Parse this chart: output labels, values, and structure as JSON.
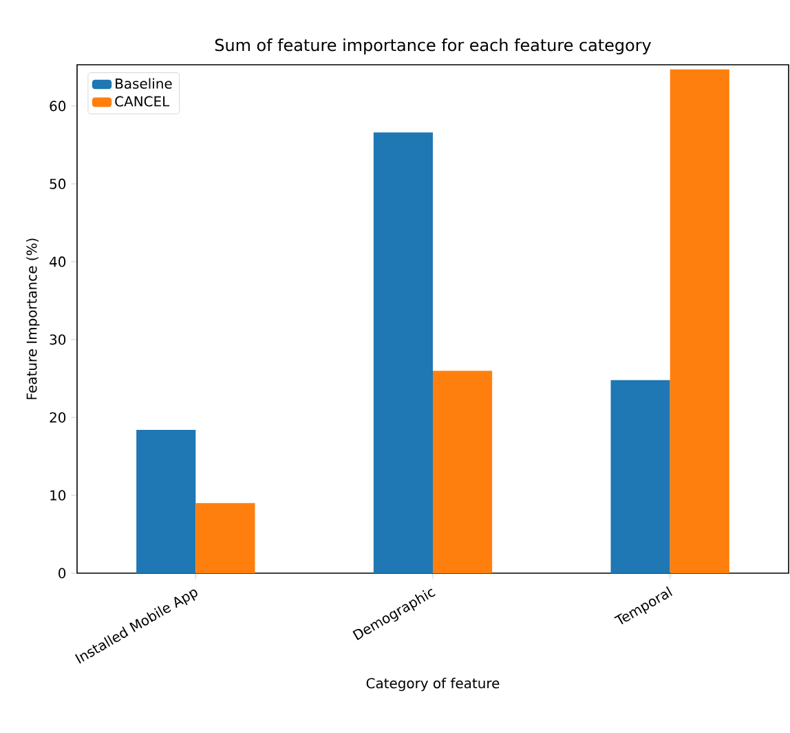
{
  "chart_data": {
    "type": "bar",
    "title": "Sum of feature importance for each feature category",
    "xlabel": "Category of feature",
    "ylabel": "Feature Importance (%)",
    "categories": [
      "Installed Mobile App",
      "Demographic",
      "Temporal"
    ],
    "series": [
      {
        "name": "Baseline",
        "color": "#1f77b4",
        "values": [
          18.4,
          56.6,
          24.8
        ]
      },
      {
        "name": "CANCEL",
        "color": "#ff7f0e",
        "values": [
          9.0,
          26.0,
          64.7
        ]
      }
    ],
    "ylim": [
      0,
      65.3
    ],
    "yticks": [
      0,
      10,
      20,
      30,
      40,
      50,
      60
    ],
    "legend": "top left",
    "grid": false
  }
}
